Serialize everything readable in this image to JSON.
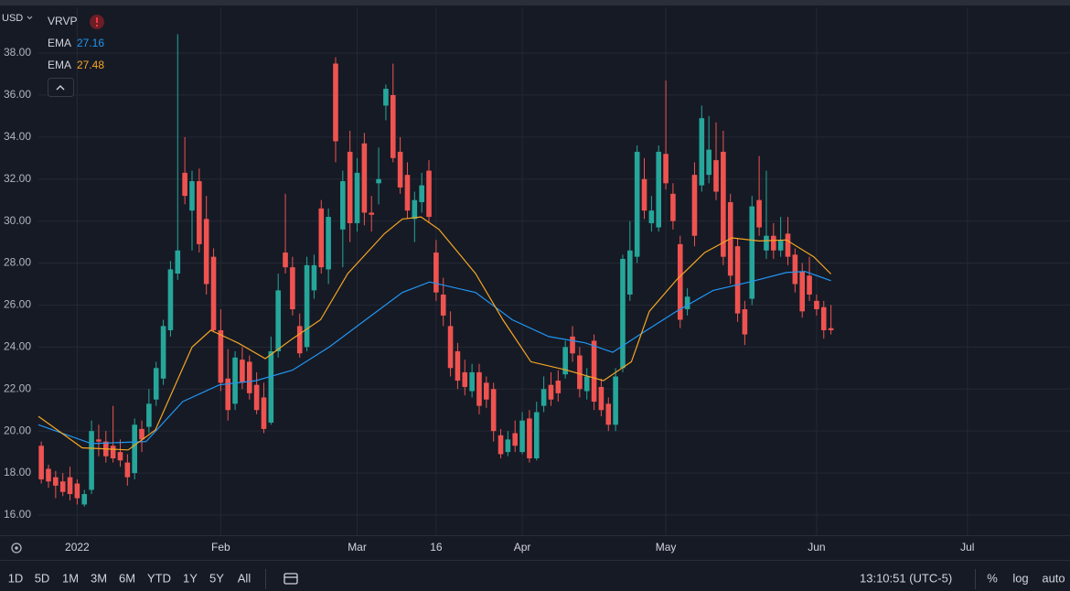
{
  "chart_data": {
    "type": "candlestick",
    "currency": "USD",
    "indicator": "VRVP",
    "up_color": "#26a69a",
    "down_color": "#ef5350",
    "grid": true,
    "xlim": [
      -0.4,
      143.3
    ],
    "ylim": [
      15.04,
      40.18
    ],
    "yticks": [
      {
        "value": 16,
        "label": "16.00"
      },
      {
        "value": 18,
        "label": "18.00"
      },
      {
        "value": 20,
        "label": "20.00"
      },
      {
        "value": 22,
        "label": "22.00"
      },
      {
        "value": 24,
        "label": "24.00"
      },
      {
        "value": 26,
        "label": "26.00"
      },
      {
        "value": 28,
        "label": "28.00"
      },
      {
        "value": 30,
        "label": "30.00"
      },
      {
        "value": 32,
        "label": "32.00"
      },
      {
        "value": 34,
        "label": "34.00"
      },
      {
        "value": 36,
        "label": "36.00"
      },
      {
        "value": 38,
        "label": "38.00"
      }
    ],
    "xticks": [
      {
        "value": 5,
        "label": "2022"
      },
      {
        "value": 25,
        "label": "Feb"
      },
      {
        "value": 44,
        "label": "Mar"
      },
      {
        "value": 55,
        "label": "16"
      },
      {
        "value": 67,
        "label": "Apr"
      },
      {
        "value": 87,
        "label": "May"
      },
      {
        "value": 108,
        "label": "Jun"
      },
      {
        "value": 129,
        "label": "Jul"
      }
    ],
    "candles": [
      [
        19.3,
        19.5,
        17.5,
        17.7
      ],
      [
        18.2,
        18.4,
        17.3,
        17.6
      ],
      [
        17.8,
        18.1,
        16.8,
        17.4
      ],
      [
        17.6,
        18.0,
        16.9,
        17.1
      ],
      [
        17.8,
        18.3,
        16.7,
        17.0
      ],
      [
        17.5,
        17.7,
        16.5,
        16.8
      ],
      [
        16.5,
        17.2,
        16.4,
        17.0
      ],
      [
        17.2,
        20.5,
        17.0,
        20.0
      ],
      [
        19.6,
        20.3,
        18.8,
        19.5
      ],
      [
        19.5,
        20.0,
        18.5,
        18.8
      ],
      [
        19.3,
        21.2,
        18.5,
        18.7
      ],
      [
        19.0,
        19.6,
        18.3,
        18.6
      ],
      [
        18.5,
        18.9,
        17.4,
        17.8
      ],
      [
        18.0,
        20.6,
        17.7,
        20.3
      ],
      [
        20.1,
        20.5,
        19.0,
        19.6
      ],
      [
        20.2,
        22.0,
        19.9,
        21.3
      ],
      [
        21.5,
        23.3,
        21.2,
        23.0
      ],
      [
        22.5,
        25.3,
        22.2,
        25.0
      ],
      [
        24.8,
        28.1,
        24.5,
        27.7
      ],
      [
        27.5,
        38.9,
        27.2,
        28.6
      ],
      [
        32.3,
        34.0,
        30.8,
        31.2
      ],
      [
        30.5,
        32.4,
        28.6,
        31.9
      ],
      [
        31.9,
        32.5,
        28.5,
        28.9
      ],
      [
        30.1,
        31.2,
        26.5,
        27.0
      ],
      [
        28.3,
        28.7,
        24.7,
        24.8
      ],
      [
        24.8,
        25.8,
        21.9,
        22.3
      ],
      [
        22.5,
        23.9,
        20.5,
        21.0
      ],
      [
        21.3,
        23.8,
        21.0,
        23.5
      ],
      [
        23.4,
        24.0,
        22.0,
        22.3
      ],
      [
        23.3,
        23.6,
        21.5,
        21.8
      ],
      [
        22.2,
        22.8,
        20.8,
        21.0
      ],
      [
        21.6,
        22.3,
        19.9,
        20.1
      ],
      [
        20.4,
        24.5,
        20.3,
        23.8
      ],
      [
        23.8,
        27.5,
        23.5,
        26.7
      ],
      [
        28.5,
        31.3,
        27.5,
        27.8
      ],
      [
        27.8,
        28.3,
        25.5,
        25.8
      ],
      [
        25.0,
        25.6,
        23.5,
        23.7
      ],
      [
        24.0,
        28.3,
        23.8,
        27.9
      ],
      [
        26.7,
        28.4,
        26.3,
        27.9
      ],
      [
        30.6,
        31.0,
        27.5,
        27.8
      ],
      [
        27.7,
        30.6,
        27.0,
        30.2
      ],
      [
        37.5,
        37.8,
        32.8,
        33.8
      ],
      [
        29.6,
        32.4,
        27.8,
        31.9
      ],
      [
        33.3,
        34.3,
        29.0,
        29.9
      ],
      [
        29.9,
        33.0,
        29.5,
        32.3
      ],
      [
        33.7,
        34.2,
        29.8,
        30.4
      ],
      [
        30.4,
        31.2,
        29.5,
        30.3
      ],
      [
        31.8,
        33.5,
        30.8,
        32.0
      ],
      [
        35.5,
        36.5,
        34.8,
        36.3
      ],
      [
        36.0,
        37.5,
        32.8,
        33.0
      ],
      [
        33.3,
        34.0,
        31.3,
        31.6
      ],
      [
        32.2,
        32.8,
        30.1,
        30.5
      ],
      [
        30.1,
        31.4,
        29.0,
        31.0
      ],
      [
        30.9,
        32.3,
        30.4,
        31.7
      ],
      [
        32.4,
        32.9,
        29.9,
        30.2
      ],
      [
        28.5,
        29.1,
        26.2,
        26.6
      ],
      [
        26.5,
        27.3,
        25.0,
        25.5
      ],
      [
        25.0,
        25.7,
        22.6,
        23.0
      ],
      [
        23.8,
        24.2,
        22.0,
        22.4
      ],
      [
        22.8,
        23.4,
        21.7,
        22.1
      ],
      [
        21.9,
        23.2,
        21.6,
        22.8
      ],
      [
        22.8,
        23.2,
        20.8,
        21.2
      ],
      [
        22.3,
        22.6,
        21.1,
        21.5
      ],
      [
        22.0,
        22.3,
        19.5,
        20.0
      ],
      [
        19.8,
        20.1,
        18.7,
        18.9
      ],
      [
        19.0,
        20.0,
        18.8,
        19.6
      ],
      [
        19.9,
        20.5,
        19.0,
        19.3
      ],
      [
        19.0,
        20.9,
        18.9,
        20.5
      ],
      [
        20.6,
        21.0,
        18.5,
        18.7
      ],
      [
        18.7,
        21.4,
        18.6,
        20.9
      ],
      [
        21.2,
        22.6,
        20.9,
        22.0
      ],
      [
        22.2,
        22.8,
        21.2,
        21.5
      ],
      [
        22.4,
        22.9,
        21.4,
        21.8
      ],
      [
        22.7,
        24.3,
        22.5,
        24.0
      ],
      [
        24.5,
        25.0,
        23.3,
        23.7
      ],
      [
        23.6,
        24.0,
        21.6,
        22.0
      ],
      [
        21.9,
        23.0,
        21.5,
        22.6
      ],
      [
        24.3,
        24.6,
        21.0,
        21.4
      ],
      [
        22.1,
        22.5,
        20.7,
        21.0
      ],
      [
        21.3,
        21.6,
        20.0,
        20.3
      ],
      [
        20.3,
        23.0,
        20.0,
        22.6
      ],
      [
        23.0,
        28.4,
        22.8,
        28.2
      ],
      [
        26.5,
        30.0,
        26.2,
        28.6
      ],
      [
        28.3,
        33.6,
        28.0,
        33.3
      ],
      [
        32.0,
        33.0,
        30.1,
        30.5
      ],
      [
        29.9,
        31.2,
        29.5,
        30.5
      ],
      [
        29.7,
        33.6,
        29.5,
        33.3
      ],
      [
        33.2,
        36.7,
        31.5,
        31.8
      ],
      [
        31.3,
        31.8,
        29.6,
        30.0
      ],
      [
        28.9,
        29.3,
        24.9,
        25.3
      ],
      [
        25.8,
        26.8,
        25.5,
        26.4
      ],
      [
        32.2,
        32.8,
        28.8,
        29.3
      ],
      [
        31.7,
        35.5,
        31.4,
        34.9
      ],
      [
        32.2,
        35.0,
        31.8,
        33.4
      ],
      [
        32.9,
        34.7,
        31.0,
        31.4
      ],
      [
        33.3,
        34.3,
        27.9,
        28.3
      ],
      [
        30.9,
        31.3,
        27.0,
        27.4
      ],
      [
        28.8,
        29.2,
        25.2,
        25.6
      ],
      [
        25.8,
        26.2,
        24.1,
        24.6
      ],
      [
        26.3,
        31.2,
        26.0,
        30.7
      ],
      [
        31.0,
        33.1,
        29.3,
        29.7
      ],
      [
        28.6,
        32.4,
        28.2,
        29.3
      ],
      [
        29.3,
        29.9,
        28.2,
        28.6
      ],
      [
        28.6,
        30.2,
        28.3,
        29.1
      ],
      [
        29.4,
        30.2,
        27.9,
        28.3
      ],
      [
        28.4,
        28.7,
        26.6,
        27.0
      ],
      [
        27.6,
        28.0,
        25.4,
        25.7
      ],
      [
        27.4,
        28.3,
        26.2,
        26.5
      ],
      [
        26.2,
        26.5,
        25.5,
        25.8
      ],
      [
        25.9,
        26.2,
        24.4,
        24.8
      ],
      [
        24.9,
        26.0,
        24.6,
        24.8
      ]
    ],
    "series": [
      {
        "name": "EMA",
        "color": "#2196f3",
        "x": [
          -0.4,
          7.0,
          14.6,
          19.7,
          24.8,
          29.9,
          35.0,
          40.1,
          45.2,
          50.3,
          54.1,
          60.5,
          65.6,
          70.7,
          75.8,
          79.6,
          83.4,
          88.5,
          93.6,
          98.7,
          103.8,
          106.4,
          110
        ],
        "values": [
          20.3,
          19.4,
          19.5,
          21.4,
          22.2,
          22.4,
          22.9,
          24.0,
          25.3,
          26.6,
          27.1,
          26.6,
          25.3,
          24.5,
          24.2,
          23.75,
          24.6,
          25.7,
          26.7,
          27.1,
          27.55,
          27.6,
          27.16
        ]
      },
      {
        "name": "EMA",
        "color": "#f5a623",
        "x": [
          -0.4,
          5.7,
          12.1,
          15.9,
          21.0,
          23.6,
          27.4,
          31.2,
          35.0,
          38.9,
          42.7,
          47.8,
          50.3,
          52.9,
          55.4,
          60.5,
          64.3,
          68.2,
          73.2,
          78.3,
          82.2,
          84.7,
          88.5,
          92.4,
          96.2,
          100.0,
          103.8,
          107.6,
          110
        ],
        "values": [
          20.7,
          19.2,
          19.1,
          20.05,
          24.0,
          24.8,
          24.2,
          23.45,
          24.4,
          25.3,
          27.5,
          29.4,
          30.1,
          30.2,
          29.6,
          27.5,
          25.3,
          23.3,
          22.9,
          22.4,
          23.3,
          25.7,
          27.2,
          28.5,
          29.2,
          29.05,
          29.1,
          28.3,
          27.48
        ]
      }
    ]
  },
  "toolbar": {
    "ranges": [
      "1D",
      "5D",
      "1M",
      "3M",
      "6M",
      "YTD",
      "1Y",
      "5Y",
      "All"
    ],
    "time": "13:10:51 (UTC-5)",
    "options": [
      "%",
      "log",
      "auto"
    ]
  }
}
